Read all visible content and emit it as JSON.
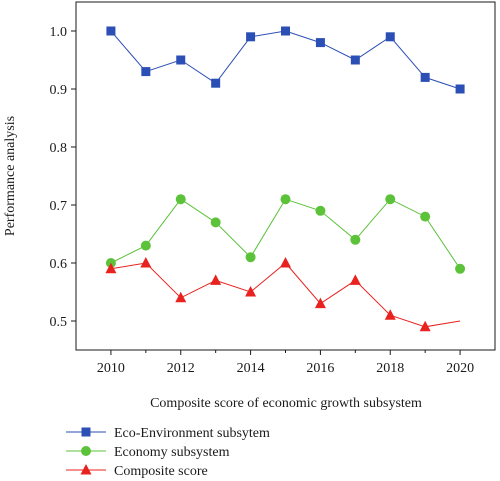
{
  "chart_data": {
    "type": "line",
    "x": [
      2010,
      2011,
      2012,
      2013,
      2014,
      2015,
      2016,
      2017,
      2018,
      2019,
      2020
    ],
    "xlabel": "Composite score of economic growth subsystem",
    "ylabel": "Performance analysis",
    "xlim": [
      2009,
      2021
    ],
    "ylim": [
      0.45,
      1.05
    ],
    "x_ticks": [
      "2010",
      "2012",
      "2014",
      "2016",
      "2018",
      "2020"
    ],
    "y_ticks": [
      "0.5",
      "0.6",
      "0.7",
      "0.8",
      "0.9",
      "1.0"
    ],
    "grid": false,
    "legend_position": "bottom-left",
    "series": [
      {
        "name": "Eco-Environment subsytem",
        "color": "#2b4fb5",
        "marker": "square",
        "values": [
          1.0,
          0.93,
          0.95,
          0.91,
          0.99,
          1.0,
          0.98,
          0.95,
          0.99,
          0.92,
          0.9
        ]
      },
      {
        "name": "Economy subsystem",
        "color": "#5cc23a",
        "marker": "circle",
        "values": [
          0.6,
          0.63,
          0.71,
          0.67,
          0.61,
          0.71,
          0.69,
          0.64,
          0.71,
          0.68,
          0.59
        ]
      },
      {
        "name": "Composite score",
        "color": "#e8231f",
        "marker": "triangle",
        "values": [
          0.59,
          0.6,
          0.54,
          0.57,
          0.55,
          0.6,
          0.53,
          0.57,
          0.51,
          0.49,
          0.5
        ],
        "marker_mask": [
          true,
          true,
          true,
          true,
          true,
          true,
          true,
          true,
          true,
          true,
          false
        ]
      }
    ]
  }
}
